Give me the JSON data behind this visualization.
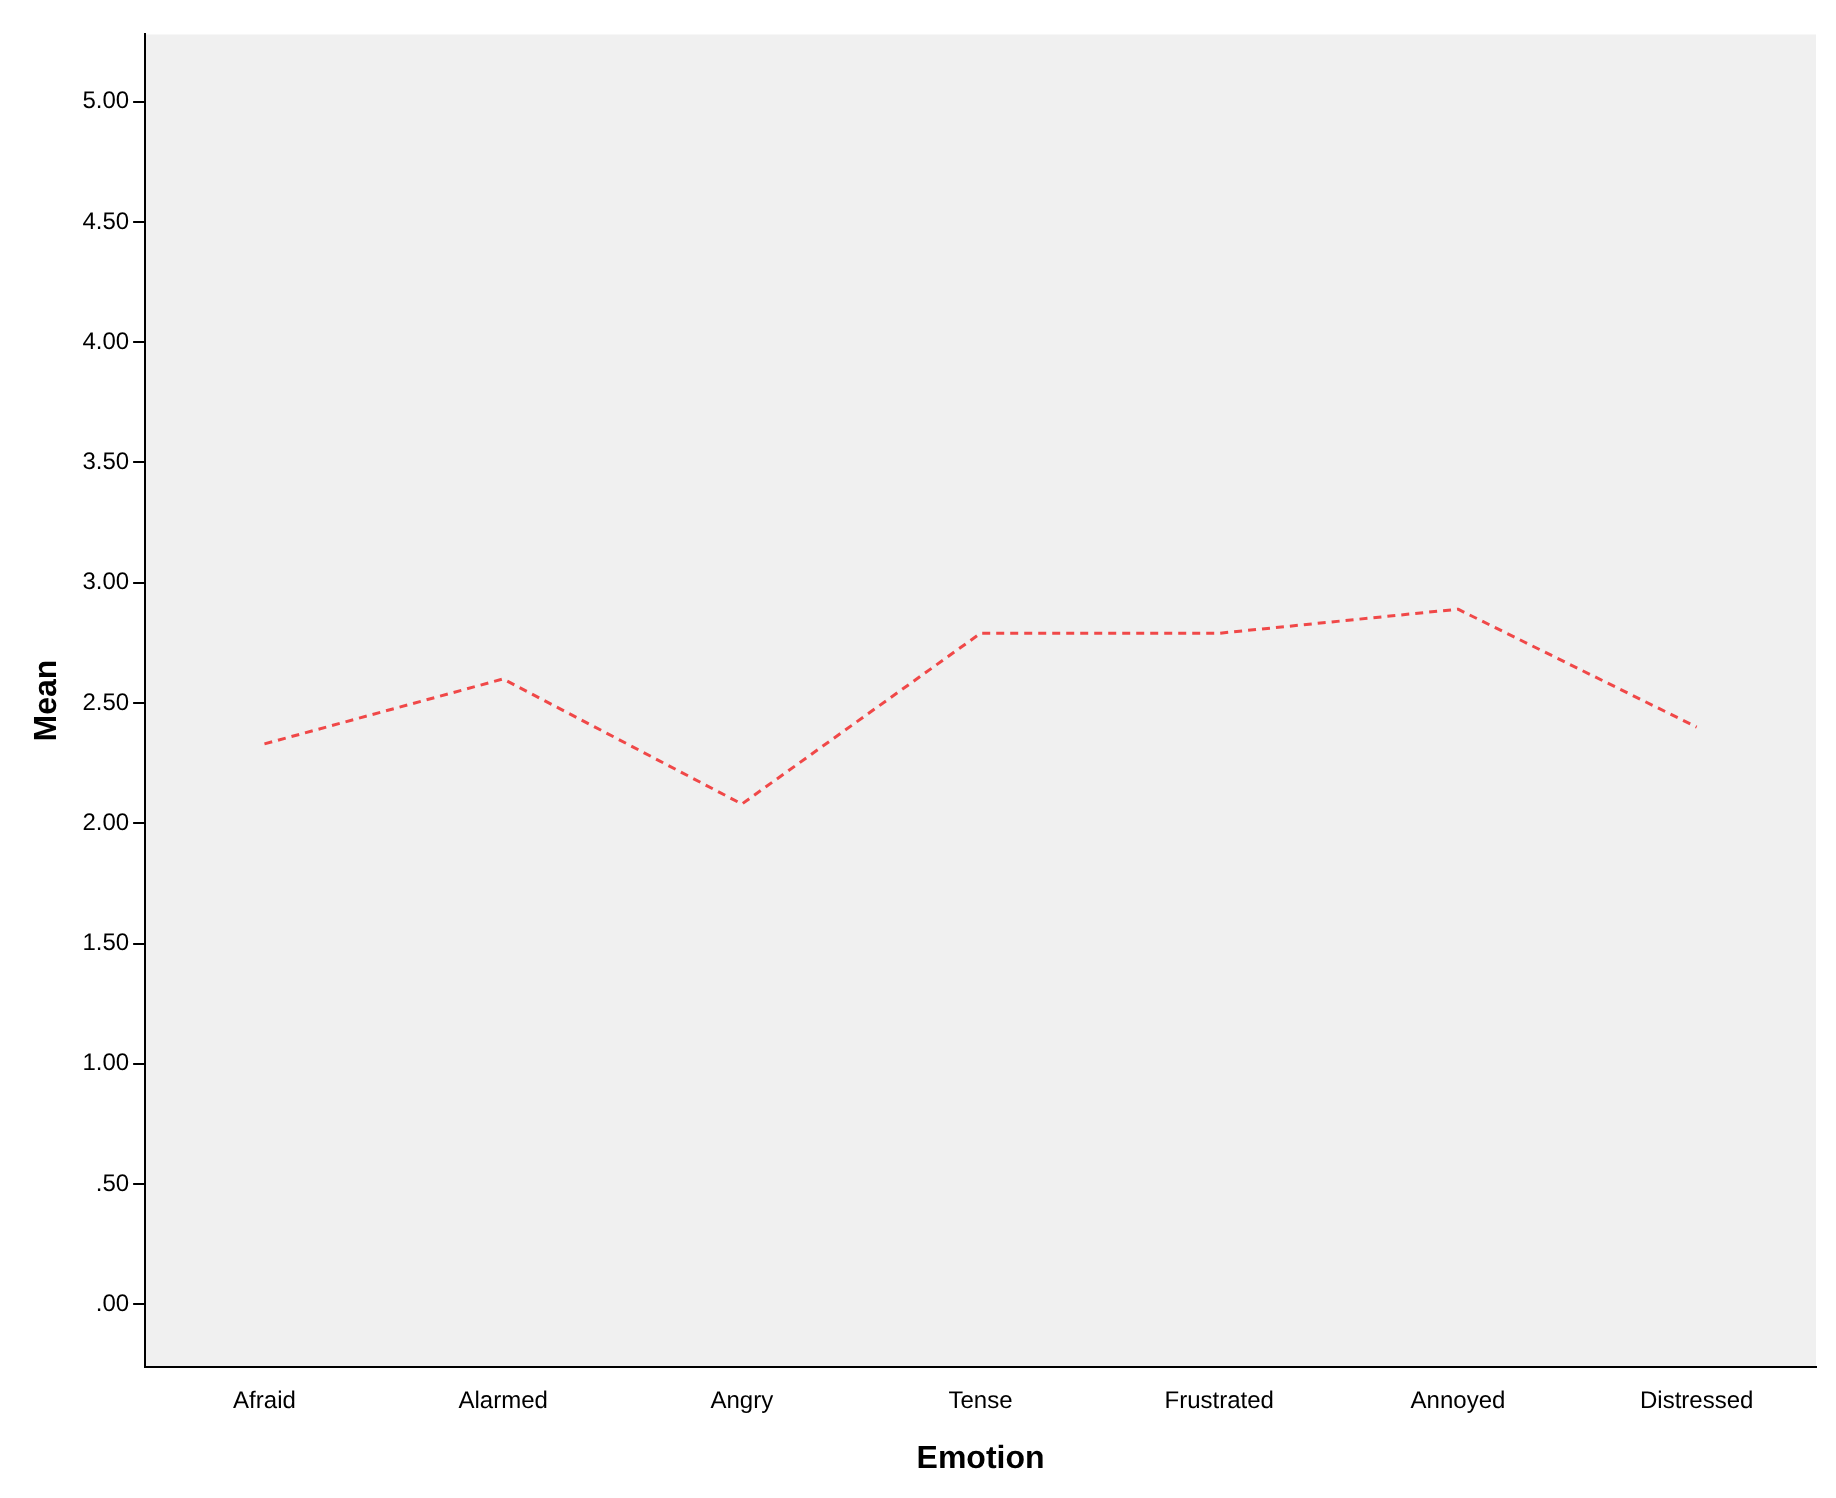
{
  "chart_data": {
    "type": "line",
    "xlabel": "Emotion",
    "ylabel": "Mean",
    "categories": [
      "Afraid",
      "Alarmed",
      "Angry",
      "Tense",
      "Frustrated",
      "Annoyed",
      "Distressed"
    ],
    "series": [
      {
        "color": "#f04848",
        "values": [
          2.33,
          2.6,
          2.08,
          2.79,
          2.79,
          2.89,
          2.4
        ]
      }
    ],
    "ylim": [
      -0.26,
      5.28
    ],
    "yticks": [
      {
        "value": 0,
        "label": ".00"
      },
      {
        "value": 0.5,
        "label": ".50"
      },
      {
        "value": 1,
        "label": "1.00"
      },
      {
        "value": 1.5,
        "label": "1.50"
      },
      {
        "value": 2,
        "label": "2.00"
      },
      {
        "value": 2.5,
        "label": "2.50"
      },
      {
        "value": 3,
        "label": "3.00"
      },
      {
        "value": 3.5,
        "label": "3.50"
      },
      {
        "value": 4,
        "label": "4.00"
      },
      {
        "value": 4.5,
        "label": "4.50"
      },
      {
        "value": 5,
        "label": "5.00"
      }
    ],
    "grid": false,
    "legend": false,
    "marker": "none",
    "line_style": "dashed"
  }
}
